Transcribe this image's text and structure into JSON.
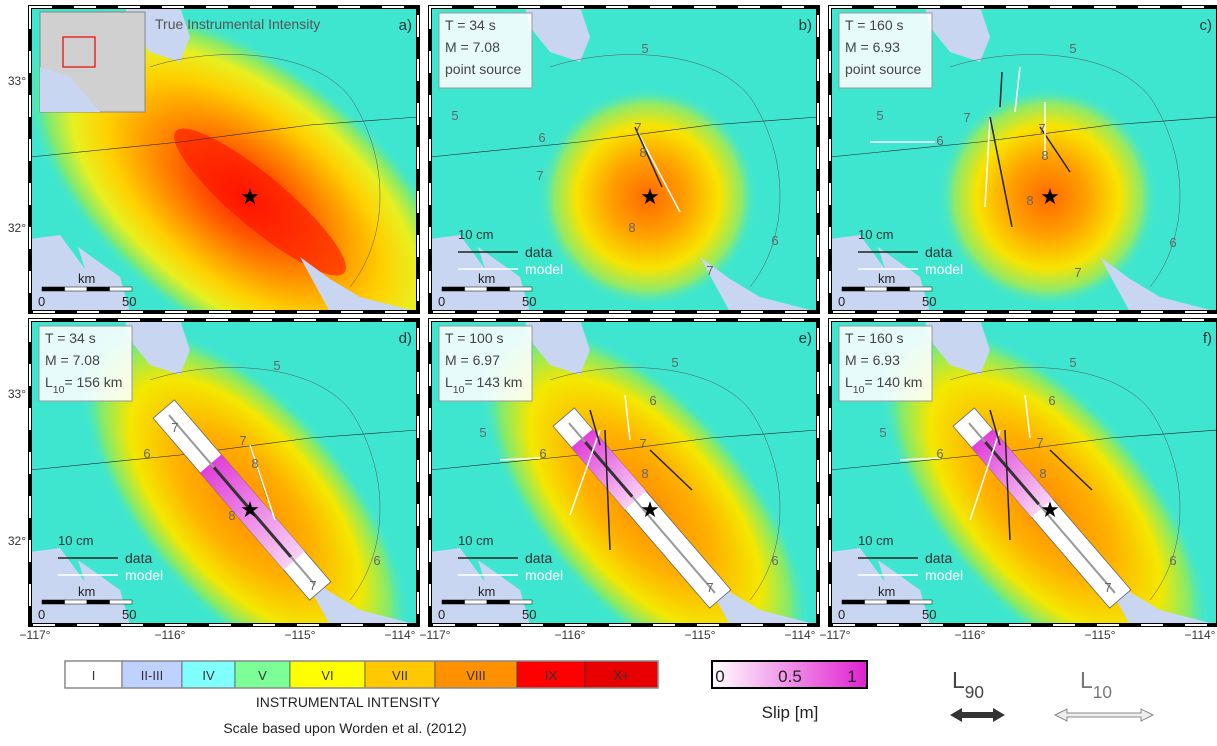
{
  "panels": [
    {
      "label": "a)",
      "title": "True Instrumental Intensity",
      "contour_labels": []
    },
    {
      "label": "b)",
      "info": [
        "T = 34 s",
        "M = 7.08",
        "point source"
      ],
      "contour_labels": [
        "5",
        "5",
        "7",
        "6",
        "7",
        "8",
        "8",
        "6",
        "7"
      ]
    },
    {
      "label": "c)",
      "info": [
        "T = 160 s",
        "M = 6.93",
        "point source"
      ],
      "contour_labels": [
        "5",
        "5",
        "7",
        "6",
        "7",
        "8",
        "8",
        "6",
        "7"
      ]
    },
    {
      "label": "d)",
      "info": [
        "T = 34 s",
        "M = 7.08"
      ],
      "length": {
        "base": "L",
        "sub": "10",
        "rest": "= 156 km"
      },
      "contour_labels": [
        "5",
        "7",
        "6",
        "7",
        "8",
        "8",
        "6",
        "7"
      ]
    },
    {
      "label": "e)",
      "info": [
        "T = 100 s",
        "M = 6.97"
      ],
      "length": {
        "base": "L",
        "sub": "10",
        "rest": "= 143 km"
      },
      "contour_labels": [
        "5",
        "6",
        "5",
        "6",
        "7",
        "8",
        "6",
        "7"
      ]
    },
    {
      "label": "f)",
      "info": [
        "T = 160 s",
        "M = 6.93"
      ],
      "length": {
        "base": "L",
        "sub": "10",
        "rest": "= 140 km"
      },
      "contour_labels": [
        "5",
        "6",
        "5",
        "6",
        "7",
        "8",
        "6",
        "7"
      ]
    }
  ],
  "axes": {
    "y_labels": [
      "33°",
      "32°"
    ],
    "x_labels": [
      "−117°",
      "−116°",
      "−115°",
      "−114°"
    ]
  },
  "panel_legend": {
    "scale": "10 cm",
    "data": "data",
    "model": "model",
    "km": "km",
    "zero": "0",
    "fifty": "50"
  },
  "colorbar": {
    "classes": [
      {
        "label": "I",
        "color": "#ffffff"
      },
      {
        "label": "II-III",
        "color": "#bfd2ff"
      },
      {
        "label": "IV",
        "color": "#80ffff"
      },
      {
        "label": "V",
        "color": "#7cff96"
      },
      {
        "label": "VI",
        "color": "#ffff00"
      },
      {
        "label": "VII",
        "color": "#ffc800"
      },
      {
        "label": "VIII",
        "color": "#ff9100"
      },
      {
        "label": "IX",
        "color": "#ff0000"
      },
      {
        "label": "X+",
        "color": "#e80000"
      }
    ],
    "title": "INSTRUMENTAL INTENSITY",
    "credit": "Scale based upon Worden et al. (2012)"
  },
  "slip": {
    "ticks": [
      "0",
      "0.5",
      "1"
    ],
    "label": "Slip [m]"
  },
  "length_legend": {
    "l90": {
      "base": "L",
      "sub": "90"
    },
    "l10": {
      "base": "L",
      "sub": "10"
    }
  }
}
